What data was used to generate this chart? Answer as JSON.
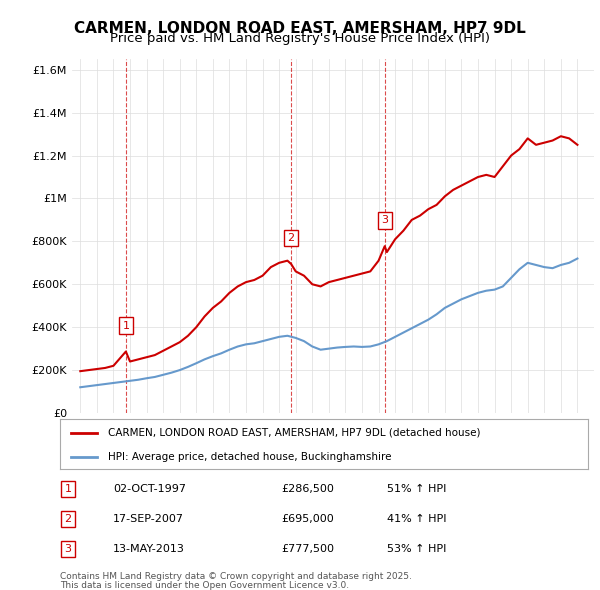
{
  "title": "CARMEN, LONDON ROAD EAST, AMERSHAM, HP7 9DL",
  "subtitle": "Price paid vs. HM Land Registry's House Price Index (HPI)",
  "title_fontsize": 11,
  "subtitle_fontsize": 9.5,
  "red_line_label": "CARMEN, LONDON ROAD EAST, AMERSHAM, HP7 9DL (detached house)",
  "blue_line_label": "HPI: Average price, detached house, Buckinghamshire",
  "transactions": [
    {
      "id": 1,
      "date_x": 1997.75,
      "price": 286500,
      "label": "1",
      "note": "02-OCT-1997",
      "pct": "51% ↑ HPI"
    },
    {
      "id": 2,
      "date_x": 2007.72,
      "price": 695000,
      "label": "2",
      "note": "17-SEP-2007",
      "pct": "41% ↑ HPI"
    },
    {
      "id": 3,
      "date_x": 2013.37,
      "price": 777500,
      "label": "3",
      "note": "13-MAY-2013",
      "pct": "53% ↑ HPI"
    }
  ],
  "vline_color": "#cc0000",
  "vline_alpha": 0.5,
  "red_color": "#cc0000",
  "blue_color": "#6699cc",
  "ylim": [
    0,
    1650000
  ],
  "yticks": [
    0,
    200000,
    400000,
    600000,
    800000,
    1000000,
    1200000,
    1400000,
    1600000
  ],
  "ytick_labels": [
    "£0",
    "£200K",
    "£400K",
    "£600K",
    "£800K",
    "£1M",
    "£1.2M",
    "£1.4M",
    "£1.6M"
  ],
  "xlim_start": 1994.5,
  "xlim_end": 2026.0,
  "footer_line1": "Contains HM Land Registry data © Crown copyright and database right 2025.",
  "footer_line2": "This data is licensed under the Open Government Licence v3.0.",
  "red_x": [
    1995,
    1995.5,
    1996,
    1996.5,
    1997,
    1997.75,
    1998,
    1998.5,
    1999,
    1999.5,
    2000,
    2000.5,
    2001,
    2001.5,
    2002,
    2002.5,
    2003,
    2003.5,
    2004,
    2004.5,
    2005,
    2005.5,
    2006,
    2006.5,
    2007,
    2007.5,
    2007.72,
    2008,
    2008.5,
    2009,
    2009.5,
    2010,
    2010.5,
    2011,
    2011.5,
    2012,
    2012.5,
    2013,
    2013.37,
    2013.5,
    2014,
    2014.5,
    2015,
    2015.5,
    2016,
    2016.5,
    2017,
    2017.5,
    2018,
    2018.5,
    2019,
    2019.5,
    2020,
    2020.5,
    2021,
    2021.5,
    2022,
    2022.5,
    2023,
    2023.5,
    2024,
    2024.5,
    2025
  ],
  "red_y": [
    195000,
    200000,
    205000,
    210000,
    220000,
    286500,
    240000,
    250000,
    260000,
    270000,
    290000,
    310000,
    330000,
    360000,
    400000,
    450000,
    490000,
    520000,
    560000,
    590000,
    610000,
    620000,
    640000,
    680000,
    700000,
    710000,
    695000,
    660000,
    640000,
    600000,
    590000,
    610000,
    620000,
    630000,
    640000,
    650000,
    660000,
    710000,
    777500,
    750000,
    810000,
    850000,
    900000,
    920000,
    950000,
    970000,
    1010000,
    1040000,
    1060000,
    1080000,
    1100000,
    1110000,
    1100000,
    1150000,
    1200000,
    1230000,
    1280000,
    1250000,
    1260000,
    1270000,
    1290000,
    1280000,
    1250000
  ],
  "blue_x": [
    1995,
    1995.5,
    1996,
    1996.5,
    1997,
    1997.5,
    1998,
    1998.5,
    1999,
    1999.5,
    2000,
    2000.5,
    2001,
    2001.5,
    2002,
    2002.5,
    2003,
    2003.5,
    2004,
    2004.5,
    2005,
    2005.5,
    2006,
    2006.5,
    2007,
    2007.5,
    2008,
    2008.5,
    2009,
    2009.5,
    2010,
    2010.5,
    2011,
    2011.5,
    2012,
    2012.5,
    2013,
    2013.5,
    2014,
    2014.5,
    2015,
    2015.5,
    2016,
    2016.5,
    2017,
    2017.5,
    2018,
    2018.5,
    2019,
    2019.5,
    2020,
    2020.5,
    2021,
    2021.5,
    2022,
    2022.5,
    2023,
    2023.5,
    2024,
    2024.5,
    2025
  ],
  "blue_y": [
    120000,
    125000,
    130000,
    135000,
    140000,
    145000,
    150000,
    155000,
    162000,
    168000,
    178000,
    188000,
    200000,
    215000,
    232000,
    250000,
    265000,
    278000,
    295000,
    310000,
    320000,
    325000,
    335000,
    345000,
    355000,
    360000,
    350000,
    335000,
    310000,
    295000,
    300000,
    305000,
    308000,
    310000,
    308000,
    310000,
    320000,
    335000,
    355000,
    375000,
    395000,
    415000,
    435000,
    460000,
    490000,
    510000,
    530000,
    545000,
    560000,
    570000,
    575000,
    590000,
    630000,
    670000,
    700000,
    690000,
    680000,
    675000,
    690000,
    700000,
    720000
  ]
}
